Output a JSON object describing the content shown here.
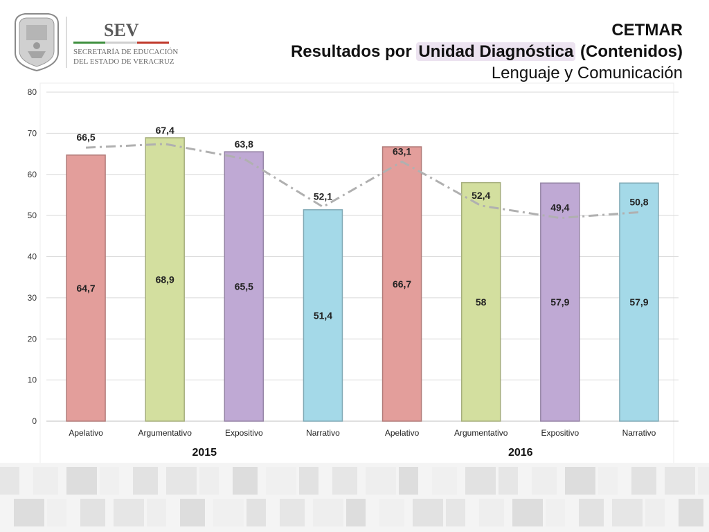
{
  "logo": {
    "brand": "SEV",
    "line1": "SECRETARÍA DE EDUCACIÓN",
    "line2": "DEL ESTADO DE VERACRUZ"
  },
  "header": {
    "title": "CETMAR",
    "subtitle_pre": "Resultados por ",
    "subtitle_highlight": "Unidad Diagnóstica",
    "subtitle_post": " (Contenidos)",
    "subject": "Lenguaje y Comunicación"
  },
  "colors": {
    "apelativo": "#e39e9b",
    "argumentativo": "#d3df9f",
    "expositivo": "#bfa9d4",
    "narrativo": "#a4d9e8",
    "trend_line": "#b0b0b0",
    "grid": "#d9d9d9"
  },
  "chart_data": {
    "type": "bar",
    "ylim": [
      0,
      80
    ],
    "yticks": [
      0,
      10,
      20,
      30,
      40,
      50,
      60,
      70,
      80
    ],
    "grid": true,
    "categories": [
      "Apelativo",
      "Argumentativo",
      "Expositivo",
      "Narrativo",
      "Apelativo",
      "Argumentativo",
      "Expositivo",
      "Narrativo"
    ],
    "groups": [
      {
        "label": "2015",
        "categories": [
          0,
          1,
          2,
          3
        ]
      },
      {
        "label": "2016",
        "categories": [
          4,
          5,
          6,
          7
        ]
      }
    ],
    "bar_colors": [
      "apelativo",
      "argumentativo",
      "expositivo",
      "narrativo",
      "apelativo",
      "argumentativo",
      "expositivo",
      "narrativo"
    ],
    "series": [
      {
        "values": [
          64.7,
          68.9,
          65.5,
          51.4,
          66.7,
          58,
          57.9,
          57.9
        ],
        "labels": [
          "64,7",
          "68,9",
          "65,5",
          "51,4",
          "66,7",
          "58",
          "57,9",
          "57,9"
        ],
        "style": "bar"
      },
      {
        "values": [
          66.5,
          67.4,
          63.8,
          52.1,
          63.1,
          52.4,
          49.4,
          50.8
        ],
        "labels": [
          "66,5",
          "67,4",
          "63,8",
          "52,1",
          "63,1",
          "52,4",
          "49,4",
          "50,8"
        ],
        "style": "dash-dot line"
      }
    ]
  }
}
